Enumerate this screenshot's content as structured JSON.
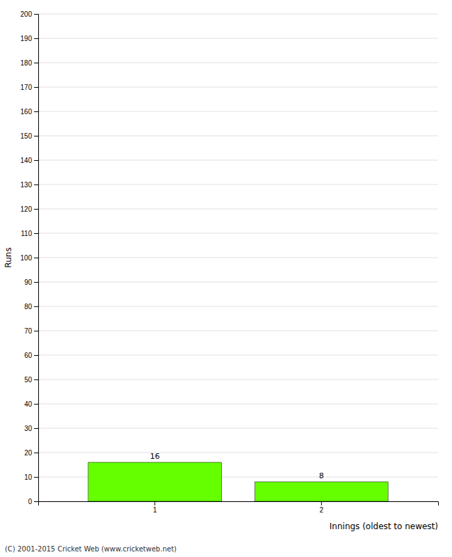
{
  "chart_data": {
    "type": "bar",
    "categories": [
      "1",
      "2"
    ],
    "values": [
      16,
      8
    ],
    "color": "#66ff00",
    "ylabel": "Runs",
    "xlabel": "Innings (oldest to newest)",
    "ylim": [
      0,
      200
    ],
    "yticks": [
      0,
      10,
      20,
      30,
      40,
      50,
      60,
      70,
      80,
      90,
      100,
      110,
      120,
      130,
      140,
      150,
      160,
      170,
      180,
      190,
      200
    ],
    "grid": true,
    "data_labels": true,
    "annotations": [
      "(C) 2001-2015 Cricket Web (www.cricketweb.net)"
    ]
  }
}
